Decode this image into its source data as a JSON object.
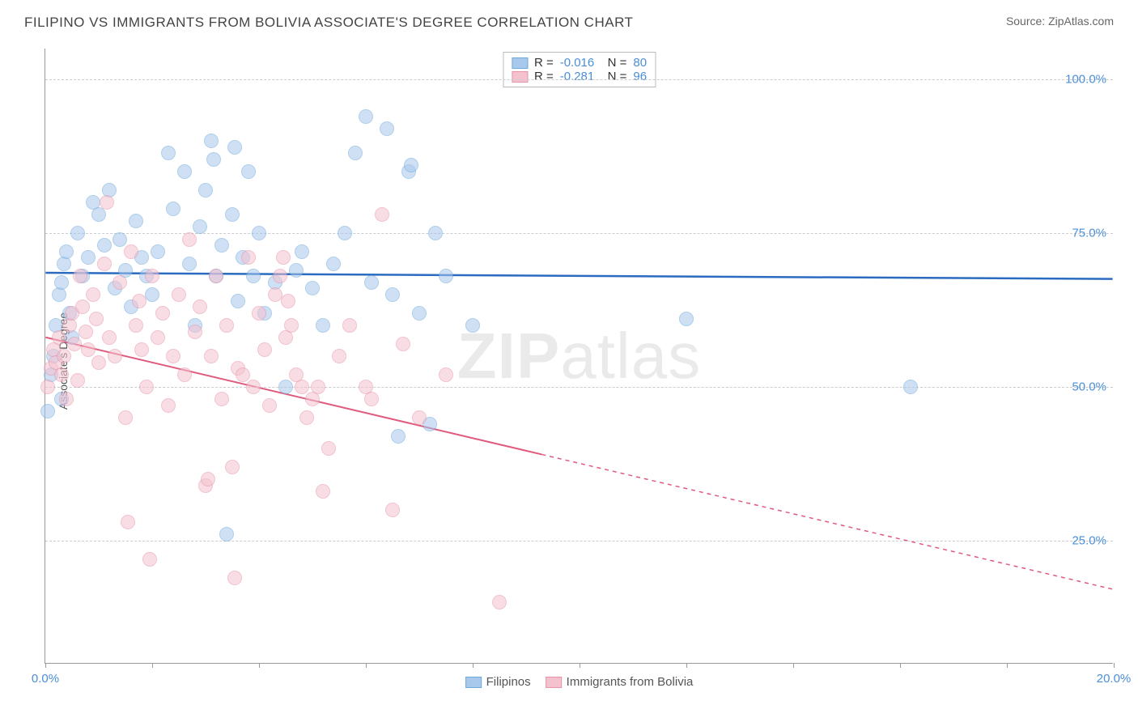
{
  "header": {
    "title": "FILIPINO VS IMMIGRANTS FROM BOLIVIA ASSOCIATE'S DEGREE CORRELATION CHART",
    "source": "Source: ZipAtlas.com"
  },
  "axes": {
    "ylabel": "Associate's Degree",
    "ylim": [
      5,
      105
    ],
    "yticks": [
      25,
      50,
      75,
      100
    ],
    "ytick_labels": [
      "25.0%",
      "50.0%",
      "75.0%",
      "100.0%"
    ],
    "xlim": [
      0,
      20
    ],
    "xticks": [
      0,
      2,
      4,
      6,
      8,
      10,
      12,
      14,
      16,
      18,
      20
    ],
    "xtick_labels": {
      "0": "0.0%",
      "20": "20.0%"
    },
    "grid_color": "#cccccc"
  },
  "watermark": {
    "text_bold": "ZIP",
    "text_light": "atlas"
  },
  "series": [
    {
      "name": "Filipinos",
      "fill": "#a8c8ec",
      "stroke": "#6fa8dc",
      "line_color": "#2a6bbf",
      "opacity": 0.55,
      "R": "-0.016",
      "N": "80",
      "trend": {
        "x1": 0,
        "y1": 68.5,
        "x2": 20,
        "y2": 67.5,
        "dashed_after_x": null
      },
      "radius": 9,
      "points": [
        [
          0.05,
          46
        ],
        [
          0.1,
          52
        ],
        [
          0.15,
          55
        ],
        [
          0.2,
          60
        ],
        [
          0.25,
          65
        ],
        [
          0.3,
          67
        ],
        [
          0.35,
          70
        ],
        [
          0.4,
          72
        ],
        [
          0.45,
          62
        ],
        [
          0.5,
          58
        ],
        [
          0.3,
          48
        ],
        [
          0.6,
          75
        ],
        [
          0.7,
          68
        ],
        [
          0.8,
          71
        ],
        [
          0.9,
          80
        ],
        [
          1.0,
          78
        ],
        [
          1.1,
          73
        ],
        [
          1.2,
          82
        ],
        [
          1.3,
          66
        ],
        [
          1.4,
          74
        ],
        [
          1.5,
          69
        ],
        [
          1.6,
          63
        ],
        [
          1.7,
          77
        ],
        [
          1.8,
          71
        ],
        [
          1.9,
          68
        ],
        [
          2.0,
          65
        ],
        [
          2.1,
          72
        ],
        [
          2.3,
          88
        ],
        [
          2.4,
          79
        ],
        [
          2.6,
          85
        ],
        [
          2.7,
          70
        ],
        [
          2.8,
          60
        ],
        [
          2.9,
          76
        ],
        [
          3.0,
          82
        ],
        [
          3.1,
          90
        ],
        [
          3.15,
          87
        ],
        [
          3.2,
          68
        ],
        [
          3.3,
          73
        ],
        [
          3.4,
          26
        ],
        [
          3.5,
          78
        ],
        [
          3.55,
          89
        ],
        [
          3.6,
          64
        ],
        [
          3.7,
          71
        ],
        [
          3.8,
          85
        ],
        [
          3.9,
          68
        ],
        [
          4.0,
          75
        ],
        [
          4.1,
          62
        ],
        [
          4.3,
          67
        ],
        [
          4.5,
          50
        ],
        [
          4.7,
          69
        ],
        [
          4.8,
          72
        ],
        [
          5.0,
          66
        ],
        [
          5.2,
          60
        ],
        [
          5.4,
          70
        ],
        [
          5.6,
          75
        ],
        [
          5.8,
          88
        ],
        [
          6.0,
          94
        ],
        [
          6.1,
          67
        ],
        [
          6.4,
          92
        ],
        [
          6.5,
          65
        ],
        [
          6.6,
          42
        ],
        [
          6.8,
          85
        ],
        [
          6.85,
          86
        ],
        [
          7.0,
          62
        ],
        [
          7.2,
          44
        ],
        [
          7.3,
          75
        ],
        [
          7.5,
          68
        ],
        [
          8.0,
          60
        ],
        [
          12.0,
          61
        ],
        [
          16.2,
          50
        ]
      ]
    },
    {
      "name": "Immigrants from Bolivia",
      "fill": "#f4c2cf",
      "stroke": "#e893a8",
      "line_color": "#e05a7d",
      "opacity": 0.55,
      "R": "-0.281",
      "N": "96",
      "trend": {
        "x1": 0,
        "y1": 58,
        "x2": 20,
        "y2": 17,
        "dashed_after_x": 9.3
      },
      "radius": 9,
      "points": [
        [
          0.05,
          50
        ],
        [
          0.1,
          53
        ],
        [
          0.15,
          56
        ],
        [
          0.2,
          54
        ],
        [
          0.25,
          58
        ],
        [
          0.3,
          52
        ],
        [
          0.35,
          55
        ],
        [
          0.4,
          48
        ],
        [
          0.45,
          60
        ],
        [
          0.5,
          62
        ],
        [
          0.55,
          57
        ],
        [
          0.6,
          51
        ],
        [
          0.65,
          68
        ],
        [
          0.7,
          63
        ],
        [
          0.75,
          59
        ],
        [
          0.8,
          56
        ],
        [
          0.9,
          65
        ],
        [
          0.95,
          61
        ],
        [
          1.0,
          54
        ],
        [
          1.1,
          70
        ],
        [
          1.15,
          80
        ],
        [
          1.2,
          58
        ],
        [
          1.3,
          55
        ],
        [
          1.4,
          67
        ],
        [
          1.5,
          45
        ],
        [
          1.55,
          28
        ],
        [
          1.6,
          72
        ],
        [
          1.7,
          60
        ],
        [
          1.75,
          64
        ],
        [
          1.8,
          56
        ],
        [
          1.9,
          50
        ],
        [
          1.95,
          22
        ],
        [
          2.0,
          68
        ],
        [
          2.1,
          58
        ],
        [
          2.2,
          62
        ],
        [
          2.3,
          47
        ],
        [
          2.4,
          55
        ],
        [
          2.5,
          65
        ],
        [
          2.6,
          52
        ],
        [
          2.7,
          74
        ],
        [
          2.8,
          59
        ],
        [
          2.9,
          63
        ],
        [
          3.0,
          34
        ],
        [
          3.05,
          35
        ],
        [
          3.1,
          55
        ],
        [
          3.2,
          68
        ],
        [
          3.3,
          48
        ],
        [
          3.4,
          60
        ],
        [
          3.5,
          37
        ],
        [
          3.55,
          19
        ],
        [
          3.6,
          53
        ],
        [
          3.7,
          52
        ],
        [
          3.8,
          71
        ],
        [
          3.9,
          50
        ],
        [
          4.0,
          62
        ],
        [
          4.1,
          56
        ],
        [
          4.2,
          47
        ],
        [
          4.3,
          65
        ],
        [
          4.4,
          68
        ],
        [
          4.45,
          71
        ],
        [
          4.5,
          58
        ],
        [
          4.55,
          64
        ],
        [
          4.6,
          60
        ],
        [
          4.7,
          52
        ],
        [
          4.8,
          50
        ],
        [
          4.9,
          45
        ],
        [
          5.0,
          48
        ],
        [
          5.1,
          50
        ],
        [
          5.2,
          33
        ],
        [
          5.3,
          40
        ],
        [
          5.5,
          55
        ],
        [
          5.7,
          60
        ],
        [
          6.0,
          50
        ],
        [
          6.1,
          48
        ],
        [
          6.3,
          78
        ],
        [
          6.5,
          30
        ],
        [
          6.7,
          57
        ],
        [
          7.0,
          45
        ],
        [
          7.5,
          52
        ],
        [
          8.5,
          15
        ]
      ]
    }
  ],
  "legend_bottom": [
    {
      "label": "Filipinos",
      "fill": "#a8c8ec",
      "stroke": "#6fa8dc"
    },
    {
      "label": "Immigrants from Bolivia",
      "fill": "#f4c2cf",
      "stroke": "#e893a8"
    }
  ]
}
